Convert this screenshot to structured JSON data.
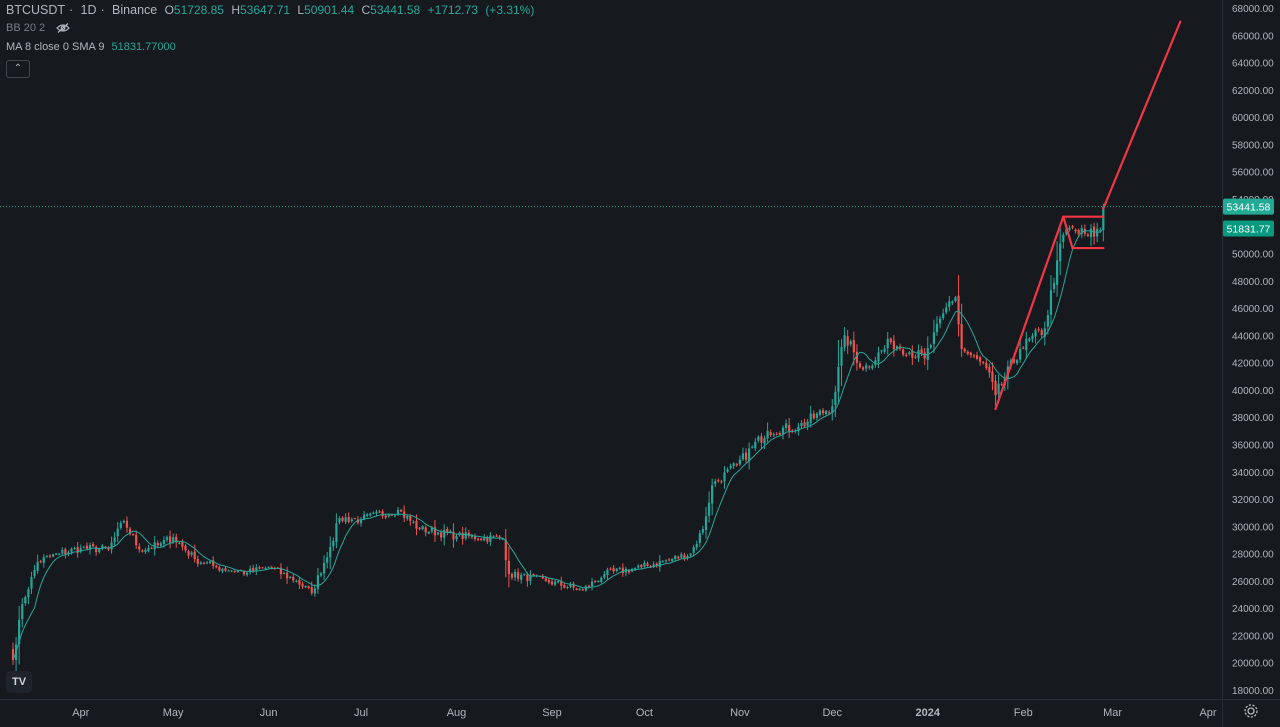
{
  "legend": {
    "symbol": "BTCUSDT",
    "interval": "1D",
    "exchange": "Binance",
    "open_label": "O",
    "open": "51728.85",
    "high_label": "H",
    "high": "53647.71",
    "low_label": "L",
    "low": "50901.44",
    "close_label": "C",
    "close": "53441.58",
    "change": "+1712.73",
    "change_pct": "(+3.31%)",
    "indicator1": "BB 20 2",
    "indicator2_name": "MA 8 close 0 SMA 9",
    "indicator2_value": "51831.77000"
  },
  "collapse_glyph": "⌃",
  "logo_text": "TV",
  "price_tags": {
    "last": "53441.58",
    "ma": "51831.77"
  },
  "colors": {
    "background": "#161a1e",
    "up": "#26a69a",
    "down": "#ef5350",
    "ma_line": "#26a69a",
    "drawing": "#f23645",
    "last_price_tag": "#22ab94",
    "ma_tag": "#089981"
  },
  "icons": [
    "eye-off-icon",
    "gear-icon",
    "collapse-chevron-icon"
  ],
  "chart_data": {
    "type": "candlestick",
    "ylim": [
      18000,
      68000
    ],
    "y_ticks": [
      "68000.00",
      "66000.00",
      "64000.00",
      "62000.00",
      "60000.00",
      "58000.00",
      "56000.00",
      "54000.00",
      "52000.00",
      "50000.00",
      "48000.00",
      "46000.00",
      "44000.00",
      "42000.00",
      "40000.00",
      "38000.00",
      "36000.00",
      "34000.00",
      "32000.00",
      "30000.00",
      "28000.00",
      "26000.00",
      "24000.00",
      "22000.00",
      "20000.00",
      "18000.00"
    ],
    "x_ticks": [
      "Apr",
      "May",
      "Jun",
      "Jul",
      "Aug",
      "Sep",
      "Oct",
      "Nov",
      "Dec",
      "2024",
      "Feb",
      "Mar",
      "Apr"
    ],
    "price_path": [
      [
        "2023-03-10",
        20200
      ],
      [
        "2023-03-13",
        24300
      ],
      [
        "2023-03-18",
        27400
      ],
      [
        "2023-03-25",
        28000
      ],
      [
        "2023-04-01",
        28400
      ],
      [
        "2023-04-10",
        28300
      ],
      [
        "2023-04-15",
        30400
      ],
      [
        "2023-04-20",
        28300
      ],
      [
        "2023-04-26",
        28600
      ],
      [
        "2023-05-01",
        29200
      ],
      [
        "2023-05-08",
        27600
      ],
      [
        "2023-05-15",
        27000
      ],
      [
        "2023-05-25",
        26600
      ],
      [
        "2023-06-01",
        27000
      ],
      [
        "2023-06-10",
        26000
      ],
      [
        "2023-06-15",
        25100
      ],
      [
        "2023-06-21",
        28500
      ],
      [
        "2023-06-24",
        30600
      ],
      [
        "2023-07-01",
        30500
      ],
      [
        "2023-07-13",
        31200
      ],
      [
        "2023-07-20",
        29800
      ],
      [
        "2023-08-01",
        29300
      ],
      [
        "2023-08-16",
        29100
      ],
      [
        "2023-08-18",
        26500
      ],
      [
        "2023-08-30",
        26000
      ],
      [
        "2023-09-11",
        25300
      ],
      [
        "2023-09-18",
        26500
      ],
      [
        "2023-09-30",
        27000
      ],
      [
        "2023-10-10",
        27600
      ],
      [
        "2023-10-16",
        28000
      ],
      [
        "2023-10-20",
        29800
      ],
      [
        "2023-10-23",
        33000
      ],
      [
        "2023-10-31",
        34500
      ],
      [
        "2023-11-10",
        37000
      ],
      [
        "2023-11-20",
        37300
      ],
      [
        "2023-12-01",
        38800
      ],
      [
        "2023-12-05",
        44000
      ],
      [
        "2023-12-11",
        41500
      ],
      [
        "2023-12-20",
        43500
      ],
      [
        "2023-12-31",
        42300
      ],
      [
        "2024-01-08",
        46500
      ],
      [
        "2024-01-10",
        46800
      ],
      [
        "2024-01-12",
        43000
      ],
      [
        "2024-01-20",
        41600
      ],
      [
        "2024-01-23",
        39600
      ],
      [
        "2024-01-31",
        43000
      ],
      [
        "2024-02-08",
        44500
      ],
      [
        "2024-02-12",
        49500
      ],
      [
        "2024-02-15",
        51800
      ],
      [
        "2024-02-22",
        51300
      ],
      [
        "2024-02-26",
        51700
      ],
      [
        "2024-02-27",
        53441.58
      ]
    ],
    "ma_period": 8,
    "last_price": 53441.58,
    "ma_last": 51831.77,
    "annotations": {
      "trend_line": [
        [
          "2024-01-23",
          38600
        ],
        [
          "2024-02-14",
          52700
        ]
      ],
      "range_top": [
        [
          "2024-02-14",
          52700
        ],
        [
          "2024-02-27",
          52700
        ]
      ],
      "range_bottom": [
        [
          "2024-02-17",
          50400
        ],
        [
          "2024-02-27",
          50400
        ]
      ],
      "range_left": [
        [
          "2024-02-14",
          52700
        ],
        [
          "2024-02-17",
          50400
        ]
      ],
      "projection": [
        [
          "2024-02-27",
          53300
        ],
        [
          "2024-03-23",
          67000
        ]
      ]
    }
  }
}
